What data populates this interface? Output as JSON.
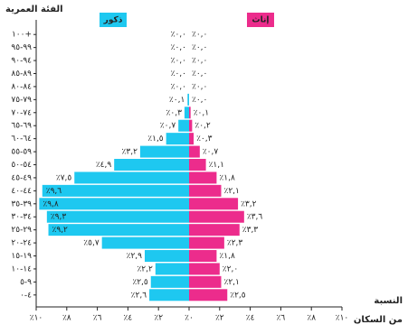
{
  "chart_data": {
    "type": "pyramid",
    "y_label": "الفئة العمرية",
    "x_label": [
      "النسبة",
      "من السكان"
    ],
    "categories": [
      "١٠٠+",
      "٩٩-٩٥",
      "٩٤-٩٠",
      "٨٩-٨٥",
      "٨٤-٨٠",
      "٧٩-٧٥",
      "٧٤-٧٠",
      "٦٩-٦٥",
      "٦٤-٦٠",
      "٥٩-٥٥",
      "٥٤-٥٠",
      "٤٩-٤٥",
      "٤٤-٤٠",
      "٣٩-٣٥",
      "٣٤-٣٠",
      "٢٩-٢٥",
      "٢٤-٢٠",
      "١٩-١٥",
      "١٤-١٠",
      "٩-٥",
      "٤-٠"
    ],
    "series": [
      {
        "name": "ذكور",
        "color": "#1ec8f0",
        "values": [
          0,
          0,
          0,
          0,
          0,
          0.1,
          0.3,
          0.7,
          1.5,
          3.2,
          4.9,
          7.5,
          9.6,
          9.8,
          9.3,
          9.2,
          5.7,
          2.9,
          2.2,
          2.5,
          2.6
        ],
        "value_labels": [
          "٪٠,٠",
          "٪٠,٠",
          "٪٠,٠",
          "٪٠,٠",
          "٪٠,٠",
          "٪٠,١",
          "٪٠,٣",
          "٪٠,٧",
          "٪١,٥",
          "٪٣,٢",
          "٪٤,٩",
          "٪٧,٥",
          "٪٩,٦",
          "٪٩,٨",
          "٪٩,٣",
          "٪٩,٢",
          "٪٥,٧",
          "٪٢,٩",
          "٪٢,٢",
          "٪٢,٥",
          "٪٢,٦"
        ]
      },
      {
        "name": "إناث",
        "color": "#ec2c8c",
        "values": [
          0,
          0,
          0,
          0,
          0,
          0,
          0.1,
          0.2,
          0.3,
          0.7,
          1.1,
          1.8,
          2.1,
          3.2,
          3.6,
          3.3,
          2.3,
          1.8,
          2.0,
          2.1,
          2.5
        ],
        "value_labels": [
          "٪٠,٠",
          "٪٠,٠",
          "٪٠,٠",
          "٪٠,٠",
          "٪٠,٠",
          "٪٠,٠",
          "٪٠,١",
          "٪٠,٢",
          "٪٠,٣",
          "٪٠,٧",
          "٪١,١",
          "٪١,٨",
          "٪٢,١",
          "٪٣,٢",
          "٪٣,٦",
          "٪٣,٣",
          "٪٢,٣",
          "٪١,٨",
          "٪٢,٠",
          "٪٢,١",
          "٪٢,٥"
        ]
      }
    ],
    "xlim": [
      -10,
      10
    ],
    "xticks": [
      {
        "value": -10,
        "label": "٪١٠"
      },
      {
        "value": -8,
        "label": "٪٨"
      },
      {
        "value": -6,
        "label": "٪٦"
      },
      {
        "value": -4,
        "label": "٪٤"
      },
      {
        "value": -2,
        "label": "٪٢"
      },
      {
        "value": 0,
        "label": "٪٠"
      },
      {
        "value": 2,
        "label": "٪٢"
      },
      {
        "value": 4,
        "label": "٪٤"
      },
      {
        "value": 6,
        "label": "٪٦"
      },
      {
        "value": 8,
        "label": "٪٨"
      },
      {
        "value": 10,
        "label": "٪١٠"
      }
    ]
  }
}
